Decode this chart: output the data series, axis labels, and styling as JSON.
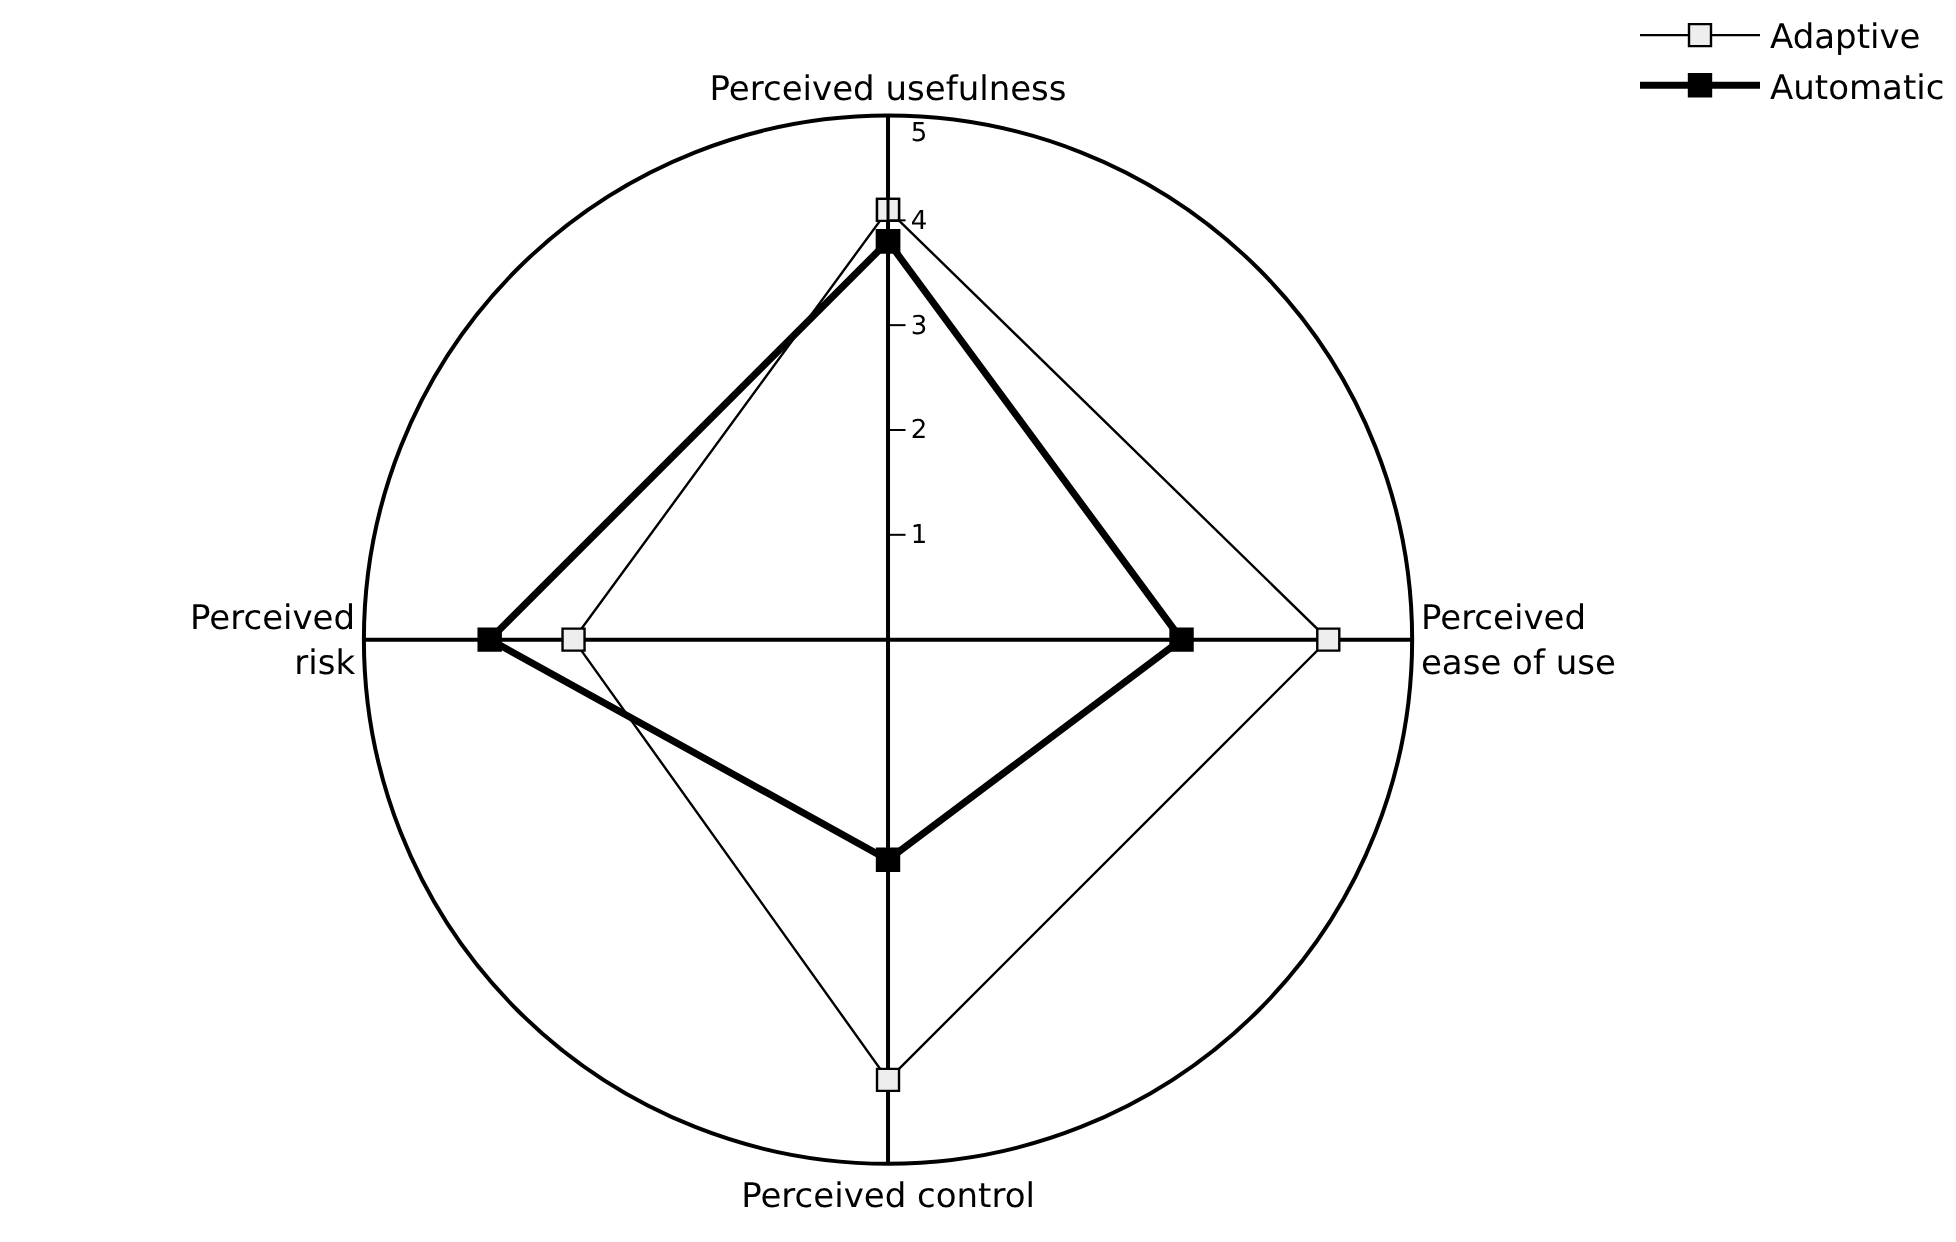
{
  "chart_data": {
    "type": "radar",
    "categories": [
      "Perceived usefulness",
      "Perceived ease of use",
      "Perceived control",
      "Perceived risk"
    ],
    "series": [
      {
        "name": "Adaptive",
        "color": "#000000",
        "values": [
          4.1,
          4.2,
          4.2,
          3.0
        ]
      },
      {
        "name": "Automatic",
        "color": "#000000",
        "values": [
          3.8,
          2.8,
          2.1,
          3.8
        ]
      }
    ],
    "ylim": [
      0,
      5
    ],
    "yticks": [
      1,
      2,
      3,
      4,
      5
    ],
    "legend": "top right",
    "marker": "square"
  }
}
